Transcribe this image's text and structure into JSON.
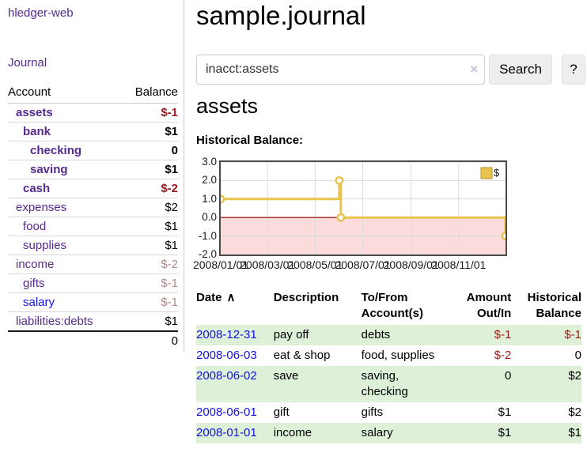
{
  "app": {
    "brand": "hledger-web"
  },
  "sidebar": {
    "journal_label": "Journal",
    "accounts_table": {
      "headers": [
        "Account",
        "Balance"
      ],
      "rows": [
        {
          "name": "assets",
          "depth": 1,
          "bold": true,
          "balance": "$-1"
        },
        {
          "name": "bank",
          "depth": 2,
          "bold": true,
          "balance": "$1"
        },
        {
          "name": "checking",
          "depth": 3,
          "bold": true,
          "balance": "0"
        },
        {
          "name": "saving",
          "depth": 3,
          "bold": true,
          "balance": "$1"
        },
        {
          "name": "cash",
          "depth": 2,
          "bold": true,
          "balance": "$-2"
        },
        {
          "name": "expenses",
          "depth": 1,
          "bold": false,
          "balance": "$2"
        },
        {
          "name": "food",
          "depth": 2,
          "bold": false,
          "balance": "$1"
        },
        {
          "name": "supplies",
          "depth": 2,
          "bold": false,
          "balance": "$1"
        },
        {
          "name": "income",
          "depth": 1,
          "bold": false,
          "balance": "$-2"
        },
        {
          "name": "gifts",
          "depth": 2,
          "bold": false,
          "balance": "$-1"
        },
        {
          "name": "salary",
          "depth": 2,
          "bold": false,
          "balance": "$-1",
          "link_color": "blue"
        },
        {
          "name": "liabilities:debts",
          "depth": 1,
          "bold": false,
          "balance": "$1"
        }
      ],
      "total": "0"
    }
  },
  "header": {
    "title": "sample.journal"
  },
  "search": {
    "value": "inacct:assets",
    "clear_icon": "×",
    "button_label": "Search",
    "help_label": "?"
  },
  "account_page": {
    "title": "assets",
    "chart_label": "Historical Balance:"
  },
  "chart_data": {
    "type": "line",
    "step": true,
    "title": "Historical Balance",
    "series": [
      {
        "name": "$",
        "points": [
          {
            "date": "2008-01-01",
            "value": 1
          },
          {
            "date": "2008-06-01",
            "value": 2
          },
          {
            "date": "2008-06-03",
            "value": 0
          },
          {
            "date": "2008-12-31",
            "value": -1
          }
        ]
      }
    ],
    "x_domain": [
      "2008-01-01",
      "2008-12-31"
    ],
    "x_ticks": [
      {
        "date": "2008-01-01",
        "label": "2008/01/01"
      },
      {
        "date": "2008-03-01",
        "label": "2008/03/01"
      },
      {
        "date": "2008-05-01",
        "label": "2008/05/01"
      },
      {
        "date": "2008-07-01",
        "label": "2008/07/01"
      },
      {
        "date": "2008-09-01",
        "label": "2008/09/01"
      },
      {
        "date": "2008-11-01",
        "label": "2008/11/01"
      }
    ],
    "y_ticks": [
      "3.0",
      "2.0",
      "1.0",
      "0.0",
      "-1.0",
      "-2.0"
    ],
    "ylim": [
      -2,
      3
    ],
    "legend": {
      "label": "$",
      "position": "top-right"
    },
    "grid": true,
    "colors": {
      "line": "#e8c34d",
      "marker_fill": "#ffffff",
      "negative_region": "#fbdbdb",
      "zero_line": "#8b0000",
      "gridline": "#dcdcdc",
      "legend_fill": "#e8c34d",
      "legend_border": "#b3952e"
    }
  },
  "register": {
    "headers": [
      "Date",
      "Description",
      "To/From Account(s)",
      "Amount Out/In",
      "Historical Balance"
    ],
    "sort_icon": "∧",
    "rows": [
      {
        "date": "2008-12-31",
        "description": "pay off",
        "accounts": "debts",
        "amount": "$-1",
        "balance": "$-1"
      },
      {
        "date": "2008-06-03",
        "description": "eat & shop",
        "accounts": "food, supplies",
        "amount": "$-2",
        "balance": "0"
      },
      {
        "date": "2008-06-02",
        "description": "save",
        "accounts": "saving, checking",
        "amount": "0",
        "balance": "$2"
      },
      {
        "date": "2008-06-01",
        "description": "gift",
        "accounts": "gifts",
        "amount": "$1",
        "balance": "$2"
      },
      {
        "date": "2008-01-01",
        "description": "income",
        "accounts": "salary",
        "amount": "$1",
        "balance": "$1"
      }
    ]
  }
}
